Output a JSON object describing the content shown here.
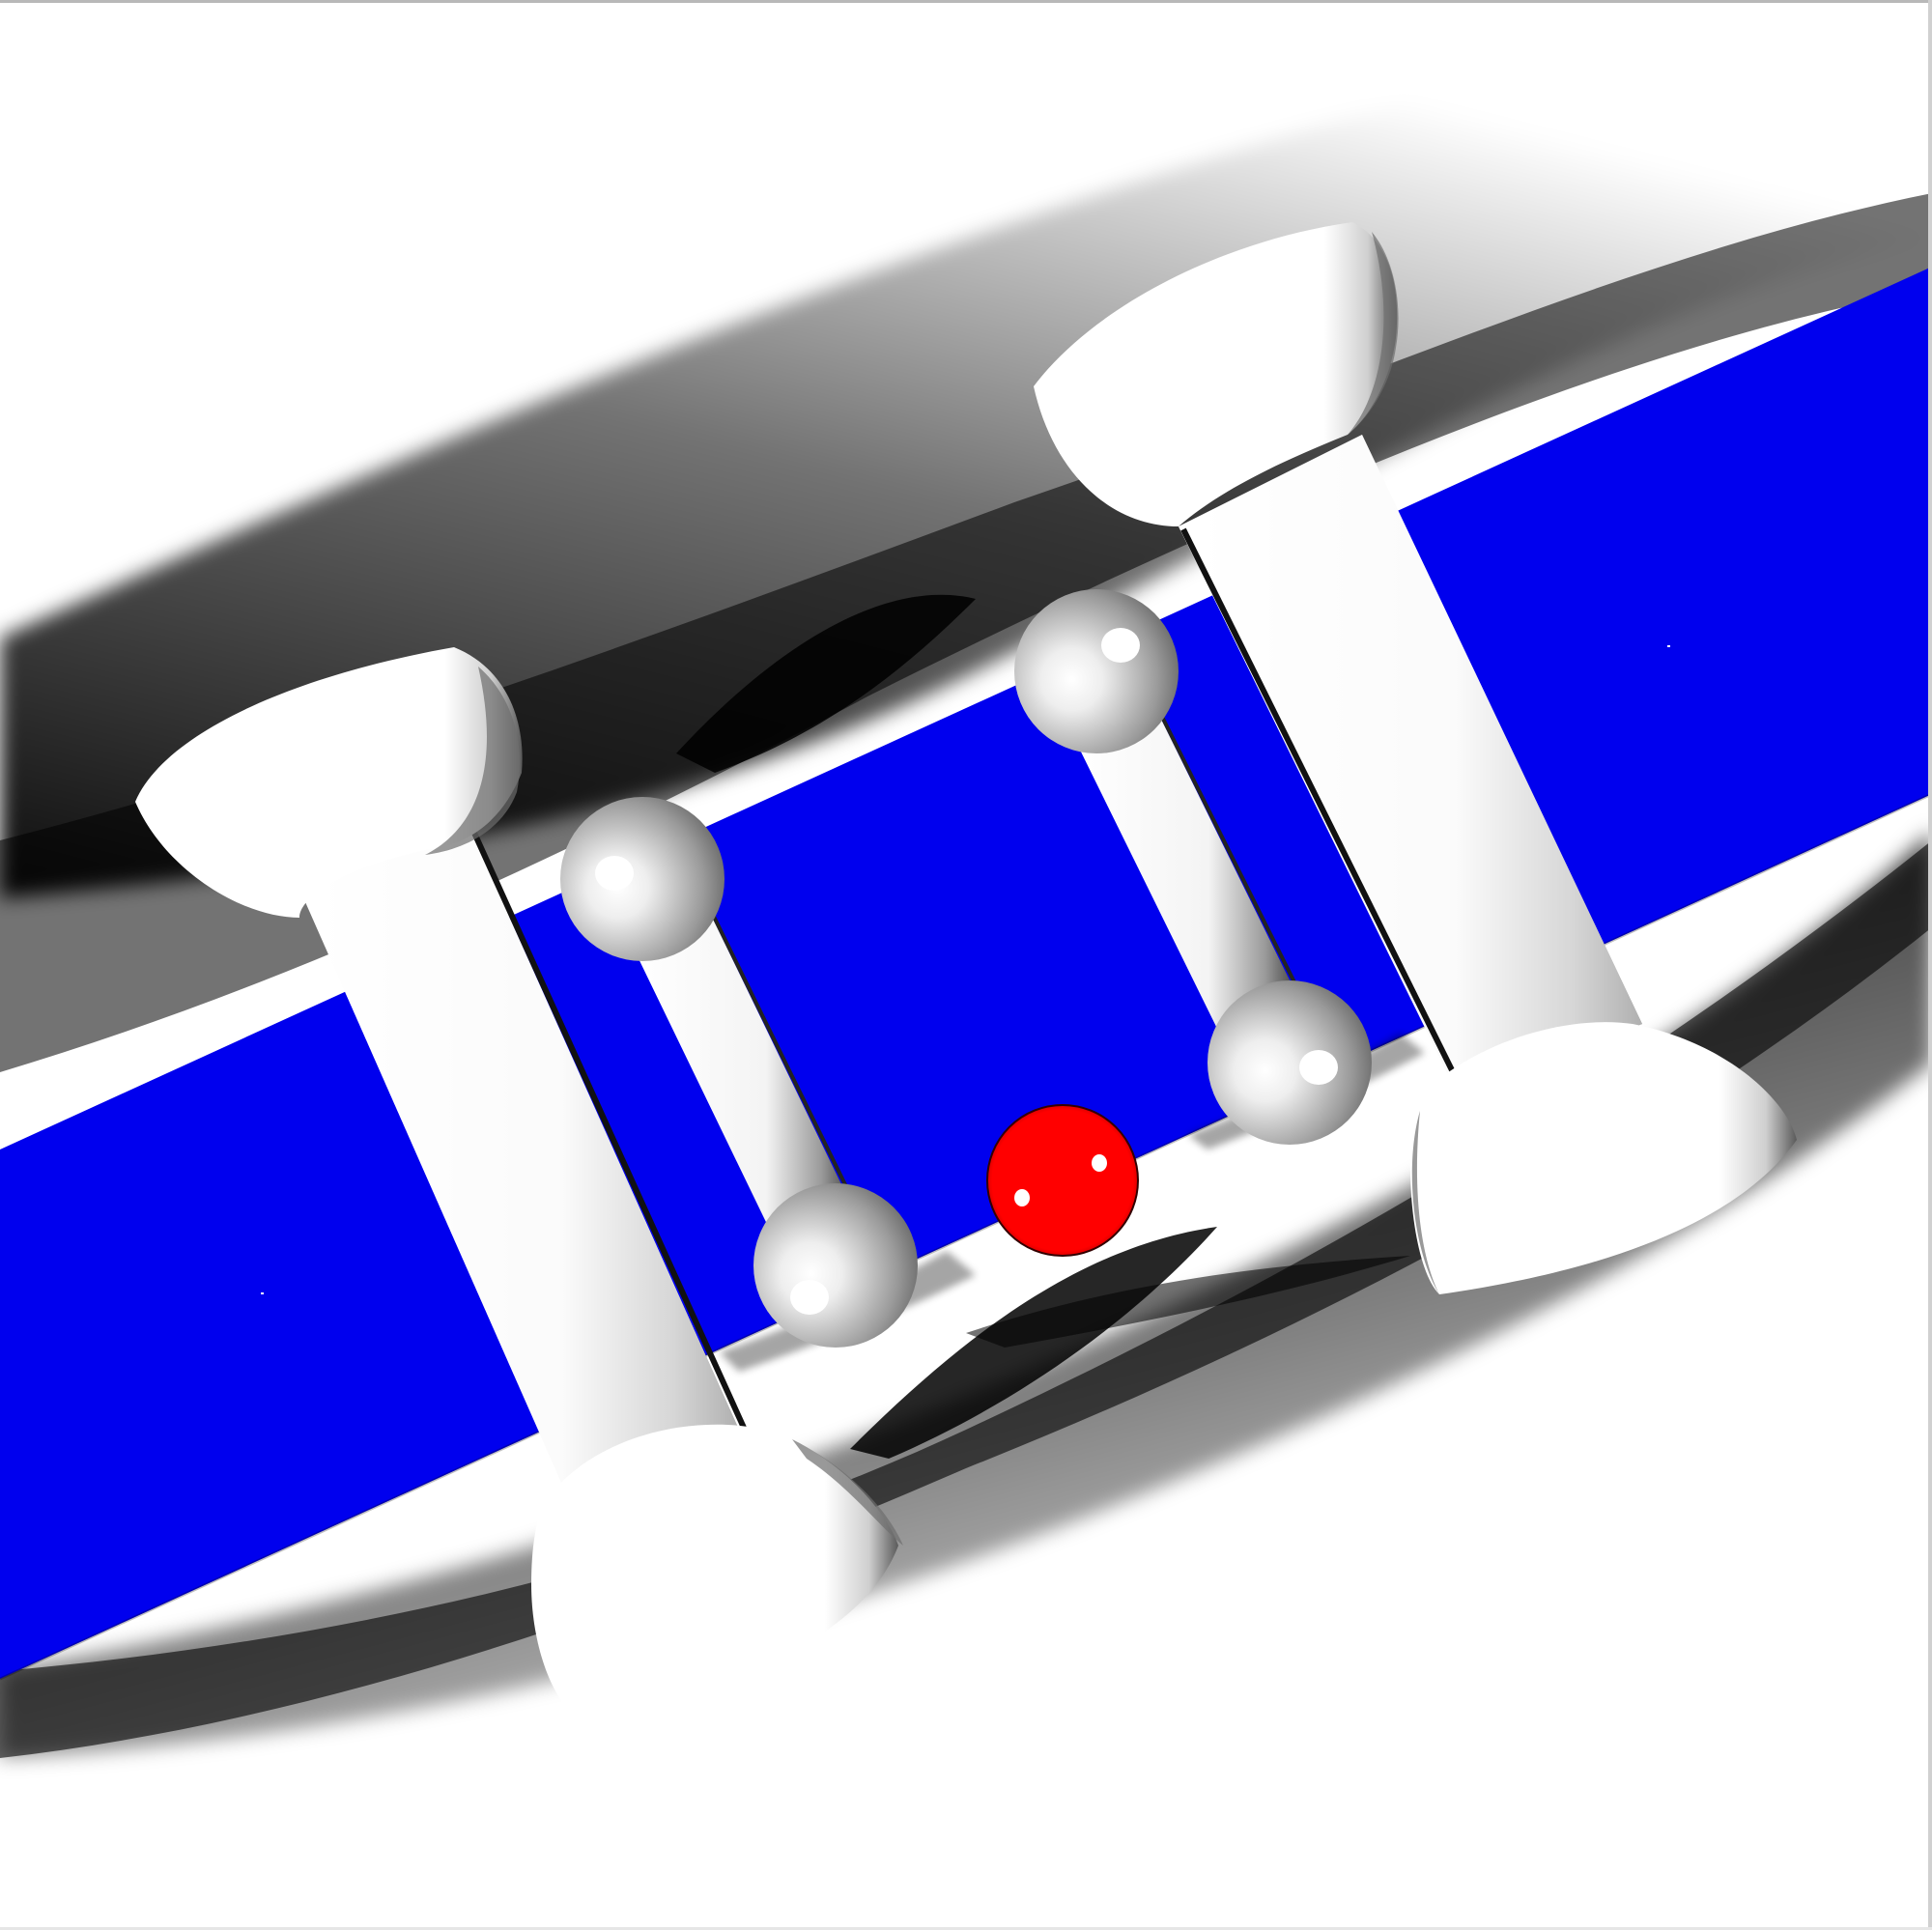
{
  "scene": {
    "type": "3d-render",
    "background_color": "#ffffff",
    "band_color": "#0000ee",
    "piece_color": "#ffffff",
    "ball_color": "#ff0000",
    "shadow_color": "#000000"
  },
  "objects": {
    "band": "blue-band",
    "large_spools": 2,
    "small_spools": 2,
    "balls": 1
  }
}
